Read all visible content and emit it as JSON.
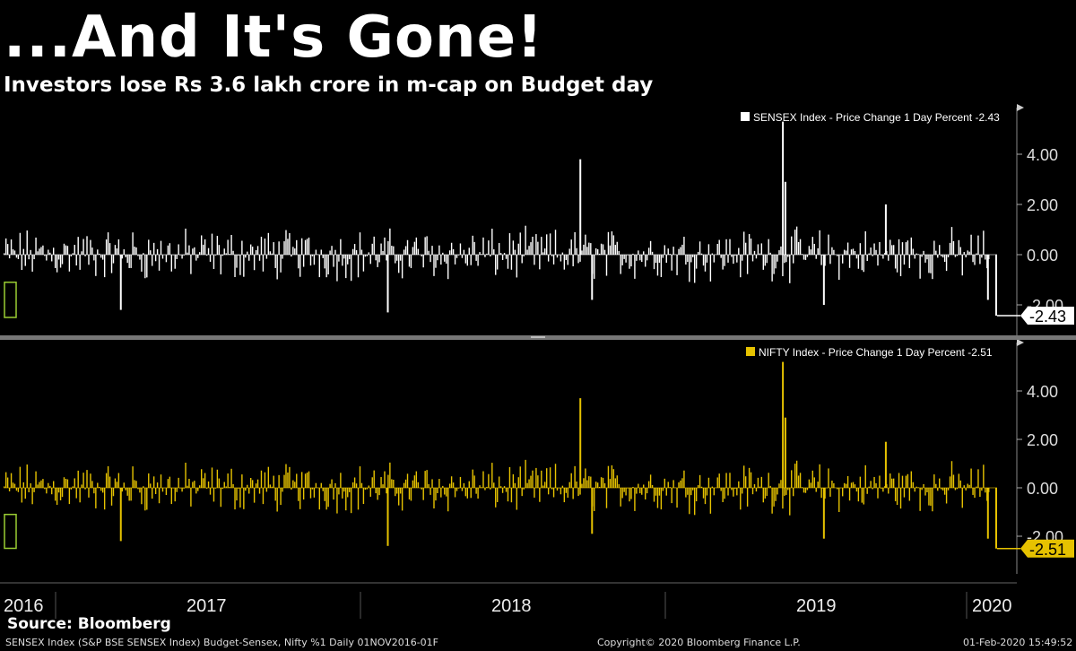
{
  "header": {
    "title": "...And It's Gone!",
    "subtitle": "Investors lose Rs 3.6 lakh crore in m-cap on Budget day"
  },
  "footer": {
    "source": "Source: Bloomberg",
    "left": "SENSEX Index (S&P BSE SENSEX Index) Budget-Sensex, Nifty %1  Daily 01NOV2016-01F",
    "center": "Copyright© 2020 Bloomberg Finance L.P.",
    "right": "01-Feb-2020 15:49:52"
  },
  "colors": {
    "sensex": "#ffffff",
    "nifty": "#e6c200",
    "background": "#000000",
    "highlight": "#9acd32"
  },
  "chart_data": [
    {
      "type": "bar",
      "legend": "SENSEX Index - Price Change 1 Day Percent -2.43",
      "last_value_label": "-2.43",
      "last_value": -2.43,
      "yticks": [
        "4.00",
        "2.00",
        "0.00",
        "-2.00"
      ],
      "ylim": [
        -2.6,
        5.6
      ],
      "xticks": [
        "2016",
        "2017",
        "2018",
        "2019",
        "2020"
      ],
      "x_range": [
        "2016-11-01",
        "2020-02-01"
      ],
      "spikes": [
        {
          "x": "2018-09-20",
          "value": 3.8
        },
        {
          "x": "2019-05-20",
          "value": 5.3
        },
        {
          "x": "2019-05-23",
          "value": 2.9
        },
        {
          "x": "2019-09-20",
          "value": 2.0
        }
      ],
      "dips": [
        {
          "x": "2017-03-20",
          "value": -2.2
        },
        {
          "x": "2018-02-02",
          "value": -2.3
        },
        {
          "x": "2018-10-04",
          "value": -1.8
        },
        {
          "x": "2019-07-08",
          "value": -2.0
        },
        {
          "x": "2020-01-20",
          "value": -1.8
        }
      ]
    },
    {
      "type": "bar",
      "legend": "NIFTY Index - Price Change 1 Day Percent -2.51",
      "last_value_label": "-2.51",
      "last_value": -2.51,
      "yticks": [
        "4.00",
        "2.00",
        "0.00",
        "-2.00"
      ],
      "ylim": [
        -2.6,
        5.6
      ],
      "xticks": [
        "2016",
        "2017",
        "2018",
        "2019",
        "2020"
      ],
      "x_range": [
        "2016-11-01",
        "2020-02-01"
      ],
      "spikes": [
        {
          "x": "2018-09-20",
          "value": 3.7
        },
        {
          "x": "2019-05-20",
          "value": 5.2
        },
        {
          "x": "2019-05-23",
          "value": 2.9
        },
        {
          "x": "2019-09-20",
          "value": 1.9
        }
      ],
      "dips": [
        {
          "x": "2017-03-20",
          "value": -2.2
        },
        {
          "x": "2018-02-02",
          "value": -2.4
        },
        {
          "x": "2018-10-04",
          "value": -1.9
        },
        {
          "x": "2019-07-08",
          "value": -2.1
        },
        {
          "x": "2020-01-20",
          "value": -2.1
        }
      ]
    }
  ]
}
